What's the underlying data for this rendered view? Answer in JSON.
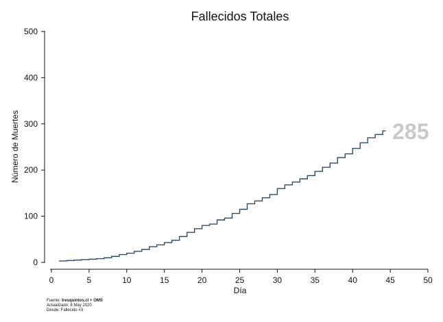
{
  "chart_data": {
    "type": "line",
    "title": "Fallecidos Totales",
    "xlabel": "Día",
    "ylabel": "Número de Muertes",
    "xlim": [
      0,
      50
    ],
    "ylim": [
      0,
      500
    ],
    "xticks": [
      0,
      5,
      10,
      15,
      20,
      25,
      30,
      35,
      40,
      45,
      50
    ],
    "yticks": [
      0,
      100,
      200,
      300,
      400,
      500
    ],
    "step": true,
    "grid": false,
    "line_color": "#2f4a66",
    "end_label_color": "#c9c9c9",
    "end_label": "285",
    "series": [
      {
        "x": [
          1,
          2,
          3,
          4,
          5,
          6,
          7,
          8,
          9,
          10,
          11,
          12,
          13,
          14,
          15,
          16,
          17,
          18,
          19,
          20,
          21,
          22,
          23,
          24,
          25,
          26,
          27,
          28,
          29,
          30,
          31,
          32,
          33,
          34,
          35,
          36,
          37,
          38,
          39,
          40,
          41,
          42,
          43,
          44
        ],
        "y": [
          3,
          4,
          5,
          6,
          7,
          8,
          10,
          13,
          17,
          20,
          24,
          28,
          34,
          38,
          43,
          48,
          56,
          65,
          73,
          80,
          83,
          92,
          96,
          106,
          115,
          127,
          133,
          140,
          147,
          160,
          168,
          174,
          181,
          188,
          197,
          206,
          215,
          227,
          235,
          247,
          259,
          270,
          277,
          285
        ]
      }
    ]
  },
  "footer": {
    "source_label": "Fuente: ",
    "source_value": "tresquintos.cl + OMS",
    "updated": "Actualizado: 8 May 2020",
    "since": "Desde: Fallecido #3"
  }
}
